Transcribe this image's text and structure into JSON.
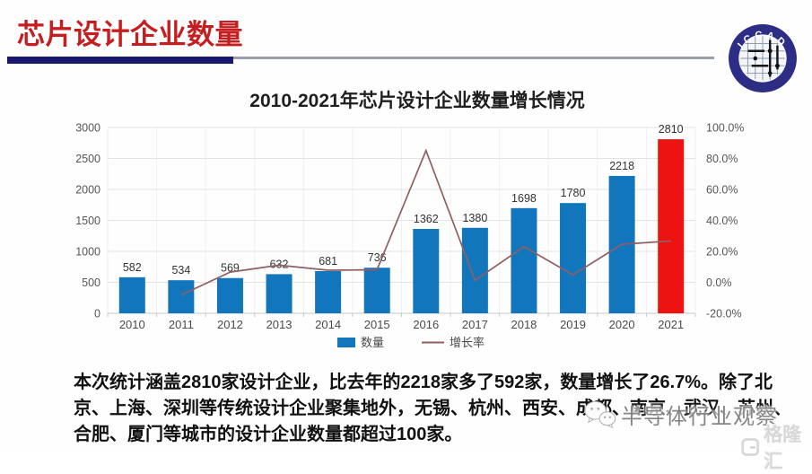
{
  "header": {
    "title": "芯片设计企业数量"
  },
  "badge": {
    "label": "ICCAD"
  },
  "colors": {
    "header_red": "#c41e20",
    "underline_navy": "#18186e",
    "underline_gray": "#9aa0ab"
  },
  "chart_data": {
    "type": "combo-bar-line",
    "title": "2010-2021年芯片设计企业数量增长情况",
    "categories": [
      "2010",
      "2011",
      "2012",
      "2013",
      "2014",
      "2015",
      "2016",
      "2017",
      "2018",
      "2019",
      "2020",
      "2021"
    ],
    "series": [
      {
        "name": "数量",
        "type": "bar",
        "axis": "left",
        "values": [
          582,
          534,
          569,
          632,
          681,
          736,
          1362,
          1380,
          1698,
          1780,
          2218,
          2810
        ],
        "color": "#1276bd",
        "highlight_index": 11,
        "highlight_color": "#ee1313"
      },
      {
        "name": "增长率",
        "type": "line",
        "axis": "right",
        "unit": "%",
        "values": [
          null,
          -8.2,
          6.6,
          11.1,
          7.8,
          8.1,
          85.1,
          1.3,
          23.0,
          4.8,
          24.6,
          26.7
        ],
        "color": "#8f5f63"
      }
    ],
    "left_axis": {
      "min": 0,
      "max": 3000,
      "ticks": [
        "0",
        "500",
        "1000",
        "1500",
        "2000",
        "2500",
        "3000"
      ]
    },
    "right_axis": {
      "min": -20,
      "max": 100,
      "ticks": [
        "-20.0%",
        "0.0%",
        "20.0%",
        "40.0%",
        "60.0%",
        "80.0%",
        "100.0%"
      ]
    },
    "legend_position": "bottom",
    "grid": true,
    "xlabel": "",
    "ylabel": ""
  },
  "paragraph": {
    "lines": [
      "本次统计涵盖2810家设计企业，比去年的2218家多了592家，数量增长了26.7%。除了北",
      "京、上海、深圳等传统设计企业聚集地外，无锡、杭州、西安、成都、南京、武汉、苏州、",
      "合肥、厦门等城市的设计企业数量都超过100家。"
    ]
  },
  "watermark": {
    "label": "半导体行业观察"
  },
  "brand": {
    "label": "格隆汇"
  }
}
